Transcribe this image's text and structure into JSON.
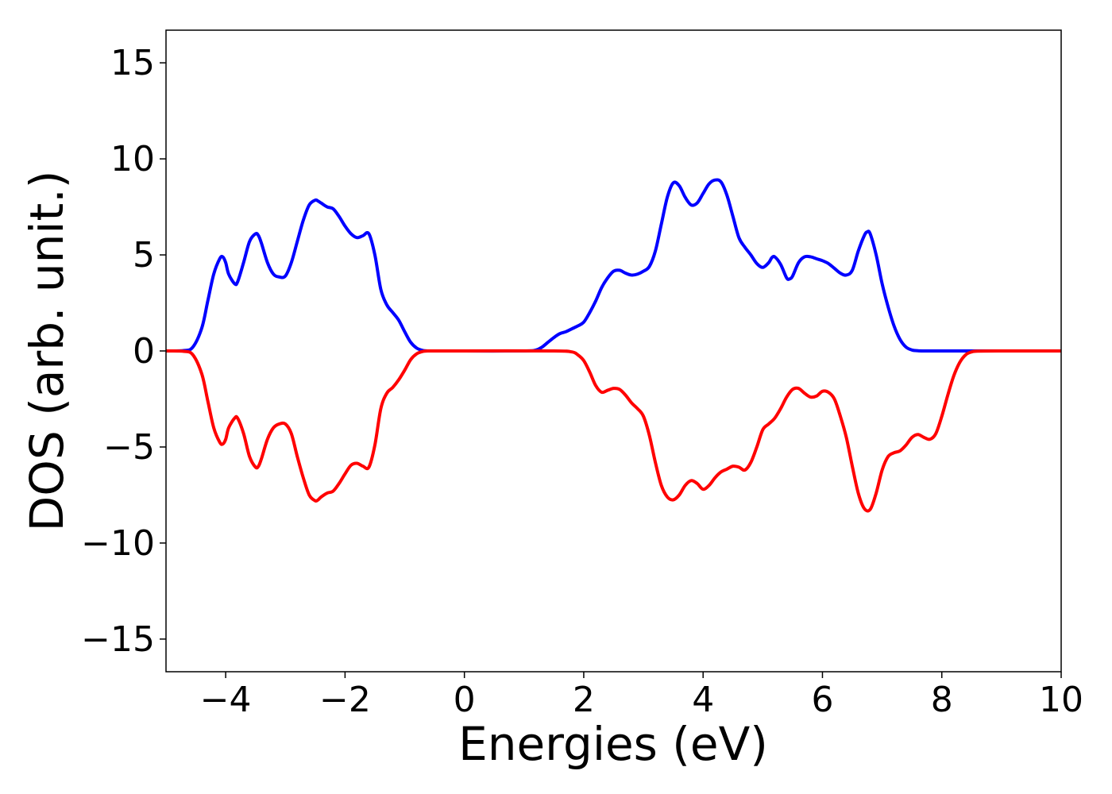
{
  "chart_data": {
    "type": "line",
    "title": "",
    "xlabel": "Energies (eV)",
    "ylabel": "DOS (arb. unit.)",
    "xlim": [
      -5,
      10
    ],
    "ylim": [
      -16.7,
      16.7
    ],
    "xticks": [
      -4,
      -2,
      0,
      2,
      4,
      6,
      8,
      10
    ],
    "xtick_labels": [
      "−4",
      "−2",
      "0",
      "2",
      "4",
      "6",
      "8",
      "10"
    ],
    "yticks": [
      15,
      10,
      5,
      0,
      -5,
      -10,
      -15
    ],
    "ytick_labels": [
      "15",
      "10",
      "5",
      "0",
      "−5",
      "−10",
      "−15"
    ],
    "grid": false,
    "series": [
      {
        "color": "#0000ff",
        "x": [
          -5,
          -4.7,
          -4.55,
          -4.4,
          -4.3,
          -4.2,
          -4.1,
          -4.05,
          -4.0,
          -3.95,
          -3.85,
          -3.8,
          -3.7,
          -3.6,
          -3.5,
          -3.45,
          -3.4,
          -3.3,
          -3.2,
          -3.1,
          -3.0,
          -2.9,
          -2.8,
          -2.7,
          -2.6,
          -2.5,
          -2.45,
          -2.4,
          -2.3,
          -2.2,
          -2.1,
          -2.0,
          -1.9,
          -1.8,
          -1.7,
          -1.6,
          -1.5,
          -1.4,
          -1.3,
          -1.2,
          -1.1,
          -1.0,
          -0.9,
          -0.8,
          -0.7,
          -0.6,
          -0.5,
          0.0,
          1.0,
          1.2,
          1.3,
          1.4,
          1.5,
          1.6,
          1.7,
          1.8,
          1.9,
          2.0,
          2.1,
          2.2,
          2.3,
          2.4,
          2.5,
          2.6,
          2.7,
          2.8,
          2.9,
          3.0,
          3.1,
          3.2,
          3.3,
          3.4,
          3.5,
          3.6,
          3.7,
          3.8,
          3.9,
          4.0,
          4.1,
          4.2,
          4.3,
          4.4,
          4.5,
          4.6,
          4.7,
          4.8,
          4.9,
          5.0,
          5.1,
          5.15,
          5.2,
          5.3,
          5.4,
          5.45,
          5.5,
          5.6,
          5.7,
          5.8,
          5.9,
          6.0,
          6.1,
          6.2,
          6.3,
          6.4,
          6.5,
          6.6,
          6.7,
          6.75,
          6.8,
          6.9,
          7.0,
          7.1,
          7.2,
          7.3,
          7.4,
          7.5,
          7.6,
          7.7,
          7.8,
          8.0,
          8.5,
          10
        ],
        "y": [
          0.0,
          0.02,
          0.2,
          1.2,
          2.6,
          4.0,
          4.8,
          4.9,
          4.6,
          4.0,
          3.5,
          3.6,
          4.6,
          5.7,
          6.1,
          6.0,
          5.6,
          4.6,
          4.0,
          3.85,
          3.9,
          4.6,
          5.7,
          6.8,
          7.6,
          7.85,
          7.8,
          7.7,
          7.5,
          7.4,
          7.0,
          6.5,
          6.1,
          5.9,
          6.0,
          6.1,
          5.0,
          3.2,
          2.4,
          2.0,
          1.6,
          1.0,
          0.45,
          0.15,
          0.03,
          0.0,
          0.0,
          0.0,
          0.0,
          0.05,
          0.2,
          0.45,
          0.7,
          0.9,
          1.0,
          1.15,
          1.3,
          1.5,
          2.0,
          2.6,
          3.3,
          3.8,
          4.15,
          4.2,
          4.05,
          3.95,
          4.0,
          4.15,
          4.4,
          5.2,
          6.6,
          8.0,
          8.75,
          8.6,
          8.0,
          7.6,
          7.7,
          8.2,
          8.7,
          8.9,
          8.8,
          8.1,
          7.0,
          5.9,
          5.4,
          5.0,
          4.55,
          4.35,
          4.6,
          4.85,
          4.9,
          4.5,
          3.8,
          3.75,
          3.9,
          4.6,
          4.9,
          4.9,
          4.8,
          4.7,
          4.55,
          4.3,
          4.05,
          3.95,
          4.2,
          5.2,
          6.0,
          6.2,
          6.1,
          5.0,
          3.5,
          2.3,
          1.3,
          0.6,
          0.2,
          0.05,
          0.01,
          0.0,
          0.0,
          0.0,
          0.0,
          0.0
        ]
      },
      {
        "color": "#ff0000",
        "x": [
          -5,
          -4.7,
          -4.55,
          -4.4,
          -4.3,
          -4.2,
          -4.1,
          -4.05,
          -4.0,
          -3.95,
          -3.85,
          -3.8,
          -3.7,
          -3.6,
          -3.5,
          -3.45,
          -3.4,
          -3.3,
          -3.2,
          -3.1,
          -3.0,
          -2.9,
          -2.8,
          -2.7,
          -2.6,
          -2.5,
          -2.45,
          -2.4,
          -2.3,
          -2.2,
          -2.1,
          -2.0,
          -1.9,
          -1.8,
          -1.7,
          -1.6,
          -1.5,
          -1.4,
          -1.3,
          -1.2,
          -1.1,
          -1.0,
          -0.9,
          -0.8,
          -0.7,
          -0.6,
          -0.5,
          0.0,
          1.5,
          1.8,
          1.9,
          2.0,
          2.1,
          2.2,
          2.3,
          2.4,
          2.5,
          2.6,
          2.7,
          2.8,
          2.9,
          3.0,
          3.1,
          3.2,
          3.3,
          3.4,
          3.5,
          3.6,
          3.7,
          3.8,
          3.9,
          4.0,
          4.1,
          4.2,
          4.3,
          4.4,
          4.5,
          4.6,
          4.7,
          4.8,
          4.9,
          5.0,
          5.1,
          5.2,
          5.3,
          5.4,
          5.5,
          5.6,
          5.7,
          5.8,
          5.9,
          6.0,
          6.1,
          6.2,
          6.3,
          6.4,
          6.5,
          6.6,
          6.7,
          6.8,
          6.9,
          7.0,
          7.1,
          7.2,
          7.3,
          7.4,
          7.5,
          7.6,
          7.7,
          7.8,
          7.9,
          8.0,
          8.1,
          8.2,
          8.3,
          8.4,
          8.5,
          8.6,
          9.0,
          10
        ],
        "y": [
          0.0,
          -0.02,
          -0.2,
          -1.2,
          -2.6,
          -4.0,
          -4.75,
          -4.85,
          -4.6,
          -4.0,
          -3.5,
          -3.5,
          -4.3,
          -5.5,
          -6.05,
          -6.0,
          -5.6,
          -4.6,
          -4.0,
          -3.8,
          -3.8,
          -4.3,
          -5.5,
          -6.6,
          -7.5,
          -7.8,
          -7.75,
          -7.6,
          -7.4,
          -7.3,
          -6.9,
          -6.4,
          -5.95,
          -5.85,
          -6.0,
          -6.05,
          -4.9,
          -3.0,
          -2.2,
          -1.9,
          -1.5,
          -1.0,
          -0.45,
          -0.15,
          -0.03,
          0.0,
          0.0,
          0.0,
          0.0,
          -0.05,
          -0.2,
          -0.5,
          -1.1,
          -1.8,
          -2.15,
          -2.05,
          -1.95,
          -2.0,
          -2.3,
          -2.7,
          -3.0,
          -3.4,
          -4.4,
          -5.8,
          -7.0,
          -7.6,
          -7.75,
          -7.5,
          -7.0,
          -6.75,
          -6.9,
          -7.2,
          -7.0,
          -6.6,
          -6.3,
          -6.15,
          -6.0,
          -6.05,
          -6.2,
          -5.8,
          -5.0,
          -4.1,
          -3.8,
          -3.5,
          -3.0,
          -2.4,
          -2.0,
          -1.95,
          -2.2,
          -2.4,
          -2.35,
          -2.1,
          -2.15,
          -2.5,
          -3.4,
          -4.5,
          -6.0,
          -7.4,
          -8.2,
          -8.25,
          -7.4,
          -6.2,
          -5.5,
          -5.3,
          -5.2,
          -4.9,
          -4.5,
          -4.35,
          -4.5,
          -4.6,
          -4.3,
          -3.4,
          -2.3,
          -1.3,
          -0.6,
          -0.2,
          -0.05,
          -0.01,
          0.0,
          0.0
        ]
      }
    ]
  }
}
